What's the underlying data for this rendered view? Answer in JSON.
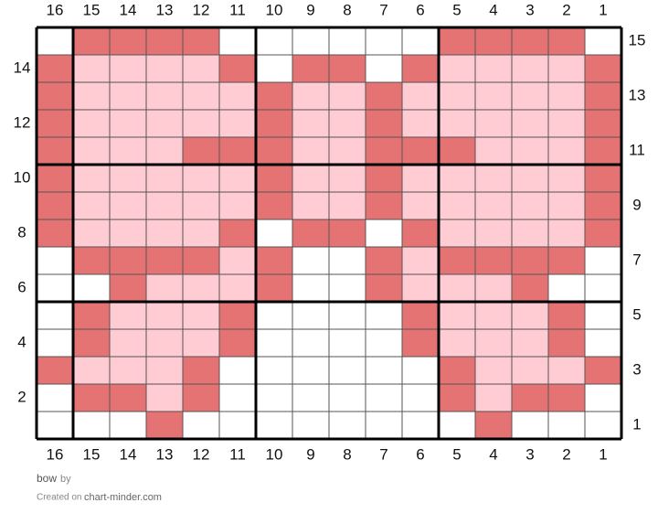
{
  "chart_data": {
    "type": "stitch-grid",
    "column_numbers": [
      16,
      15,
      14,
      13,
      12,
      11,
      10,
      9,
      8,
      7,
      6,
      5,
      4,
      3,
      2,
      1
    ],
    "row_numbers": [
      15,
      14,
      13,
      12,
      11,
      10,
      9,
      8,
      7,
      6,
      5,
      4,
      3,
      2,
      1
    ],
    "palette": {
      "W": "#ffffff",
      "D": "#e57373",
      "L": "#ffccd3"
    },
    "cells": [
      "WDDDDWWWWWWDDDDW",
      "DLLLLDWDDWDLLLLD",
      "DLLLLLDLLDLLLLLD",
      "DLLLLLDLLDLLLLLD",
      "DLLLDDDLLDDDLLLD",
      "DLLLLLDLLDLLLLLD",
      "DLLLLLDLLDLLLLLD",
      "DLLLLDWDDWDLLLLD",
      "WDDDDLDWWDLDDDDW",
      "WWDLLLDWWDLLLDWW",
      "WDLLLDWWWWDLLLDW",
      "WDLLLDWWWWDLLLDW",
      "DLLLDWWWWWWDLLLD",
      "WDDLDWWWWWWDLDDW",
      "WWWDWWWWWWWWDWWW"
    ]
  },
  "footer": {
    "name": "bow",
    "by": "by",
    "created": "Created on",
    "site": "chart-minder.com"
  }
}
